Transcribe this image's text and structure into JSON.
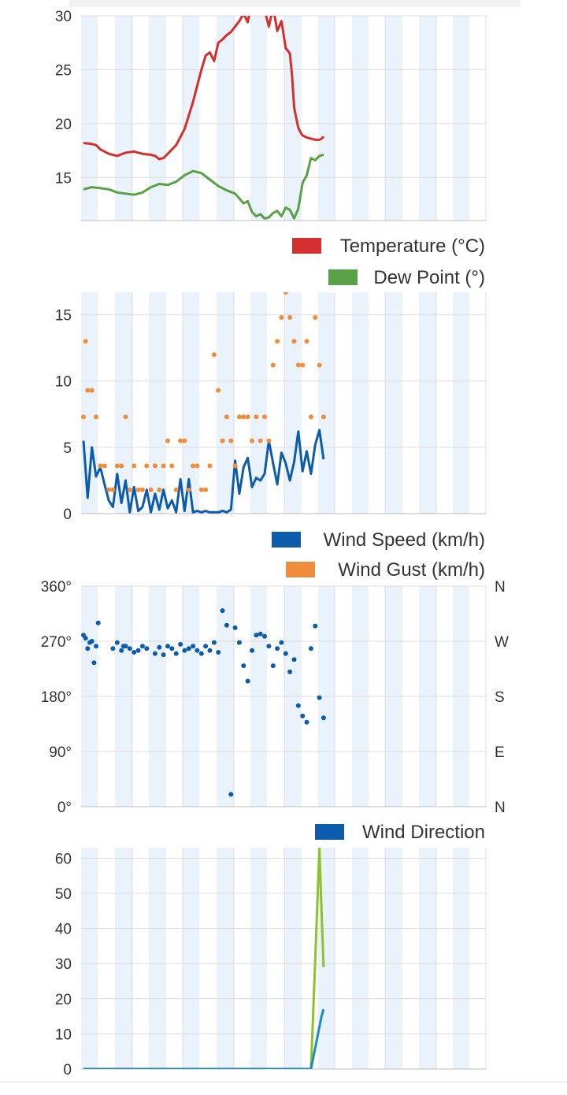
{
  "colors": {
    "temperature": "#d32f2f",
    "dew_point": "#5aa046",
    "wind_speed": "#0d5bab",
    "wind_gust": "#ef8d3c",
    "wind_direction": "#0d5bab",
    "series_blue": "#1a8cc0",
    "series_green": "#8cc22a",
    "band_shade": "#eaf2fb",
    "gridline": "#dcdcdc"
  },
  "chart_data": [
    {
      "id": "temp",
      "type": "line",
      "ylim": [
        11,
        30
      ],
      "yticks": [
        15,
        20,
        25,
        30
      ],
      "ytick_labels": [
        "15",
        "20",
        "25",
        "30"
      ],
      "grid": true,
      "legend_position": "bottom-right",
      "legend": [
        "Temperature (°C)",
        "Dew Point (°)"
      ],
      "series": [
        {
          "name": "Temperature (°C)",
          "color": "#d32f2f",
          "x": [
            0,
            2,
            3,
            4,
            6,
            8,
            10,
            12,
            14,
            16,
            17,
            18,
            19,
            20,
            22,
            24,
            26,
            27,
            28,
            29,
            30,
            31,
            32,
            33,
            34,
            35,
            36,
            37,
            38,
            39,
            40,
            41,
            42,
            44,
            45,
            46,
            47,
            48,
            49,
            49.5,
            50,
            50.5,
            51,
            51.5,
            52,
            53,
            54,
            55,
            56,
            56.5,
            57
          ],
          "y": [
            18.2,
            18.1,
            18.0,
            17.6,
            17.2,
            17.0,
            17.3,
            17.4,
            17.2,
            17.1,
            17.0,
            16.7,
            16.8,
            17.2,
            18.0,
            19.5,
            22.0,
            23.5,
            25.0,
            26.3,
            26.6,
            25.8,
            27.5,
            27.8,
            28.2,
            28.5,
            29.0,
            29.5,
            30.2,
            29.4,
            31.5,
            30.5,
            32.0,
            29.0,
            30.8,
            28.6,
            29.5,
            27.0,
            26.5,
            24.5,
            21.5,
            20.5,
            19.6,
            19.2,
            18.9,
            18.7,
            18.6,
            18.5,
            18.5,
            18.6,
            18.8
          ]
        },
        {
          "name": "Dew Point (°)",
          "color": "#5aa046",
          "x": [
            0,
            2,
            4,
            6,
            8,
            10,
            12,
            14,
            16,
            18,
            20,
            22,
            24,
            26,
            28,
            30,
            31,
            32,
            34,
            36,
            38,
            39,
            40,
            41,
            42,
            43,
            44,
            45,
            46,
            47,
            48,
            49,
            50,
            51,
            52,
            53,
            54,
            55,
            56,
            57
          ],
          "y": [
            13.9,
            14.1,
            14.0,
            13.9,
            13.6,
            13.5,
            13.4,
            13.6,
            14.1,
            14.4,
            14.3,
            14.6,
            15.2,
            15.6,
            15.4,
            14.8,
            14.5,
            14.2,
            13.8,
            13.5,
            12.6,
            12.8,
            11.8,
            11.4,
            11.6,
            11.2,
            11.3,
            11.7,
            11.9,
            11.4,
            12.2,
            12.0,
            11.2,
            12.1,
            14.5,
            15.2,
            16.8,
            16.6,
            17.0,
            17.1
          ]
        }
      ]
    },
    {
      "id": "wind",
      "type": "line",
      "ylim": [
        0,
        16.7
      ],
      "yticks": [
        0,
        5,
        10,
        15
      ],
      "ytick_labels": [
        "0",
        "5",
        "10",
        "15"
      ],
      "grid": true,
      "legend_position": "bottom-right",
      "legend": [
        "Wind Speed (km/h)",
        "Wind Gust (km/h)"
      ],
      "series": [
        {
          "name": "Wind Speed (km/h)",
          "type": "line",
          "color": "#0d5bab",
          "x": [
            0,
            1,
            2,
            3,
            4,
            5,
            6,
            7,
            8,
            9,
            10,
            11,
            12,
            13,
            14,
            15,
            16,
            17,
            18,
            19,
            20,
            21,
            22,
            23,
            24,
            25,
            26,
            27,
            28,
            29,
            30,
            31,
            32,
            33,
            34,
            35,
            36,
            37,
            38,
            39,
            40,
            41,
            42,
            43,
            44,
            45,
            46,
            47,
            48,
            49,
            50,
            51,
            52,
            53,
            54,
            55,
            56,
            57
          ],
          "y": [
            5.5,
            1.2,
            5.0,
            2.8,
            3.5,
            2.2,
            1.0,
            0.5,
            3.0,
            0.8,
            2.5,
            0.1,
            2.0,
            0.2,
            0.5,
            1.8,
            0.1,
            1.5,
            0.3,
            1.8,
            0.4,
            1.0,
            0.1,
            2.6,
            0.2,
            2.6,
            0.1,
            0.2,
            0.1,
            0.2,
            0.1,
            0.1,
            0.1,
            0.2,
            0.1,
            0.3,
            4.0,
            1.5,
            3.5,
            4.2,
            2.0,
            2.7,
            2.5,
            3.0,
            5.5,
            3.8,
            2.2,
            4.6,
            3.8,
            2.5,
            3.9,
            6.2,
            3.2,
            4.7,
            3.0,
            5.2,
            6.3,
            4.1
          ]
        },
        {
          "name": "Wind Gust (km/h)",
          "type": "scatter",
          "color": "#ef8d3c",
          "x": [
            0,
            0.5,
            1,
            2,
            3,
            4,
            5,
            6,
            7,
            8,
            9,
            10,
            11,
            12,
            13,
            14,
            15,
            16,
            17,
            18,
            19,
            20,
            21,
            22,
            23,
            24,
            25,
            26,
            27,
            28,
            29,
            30,
            31,
            32,
            33,
            34,
            35,
            36,
            37,
            38,
            39,
            40,
            41,
            42,
            43,
            44,
            45,
            46,
            47,
            48,
            49,
            50,
            51,
            52,
            53,
            54,
            55,
            56,
            57
          ],
          "y": [
            7.3,
            13.0,
            9.3,
            9.3,
            7.3,
            3.6,
            3.6,
            1.8,
            1.8,
            3.6,
            3.6,
            7.3,
            1.8,
            3.6,
            1.8,
            1.8,
            3.6,
            1.8,
            3.6,
            1.8,
            3.6,
            5.5,
            3.6,
            1.8,
            5.5,
            5.5,
            1.8,
            3.6,
            3.6,
            1.8,
            1.8,
            3.6,
            12.0,
            9.3,
            5.5,
            7.3,
            5.5,
            3.6,
            7.3,
            7.3,
            7.3,
            5.5,
            7.3,
            5.5,
            7.3,
            5.5,
            11.2,
            13.0,
            14.8,
            16.7,
            14.8,
            13.0,
            11.2,
            11.2,
            13.0,
            7.3,
            14.8,
            11.2,
            7.3
          ]
        }
      ]
    },
    {
      "id": "direction",
      "type": "scatter",
      "ylim": [
        0,
        360
      ],
      "yticks": [
        0,
        90,
        180,
        270,
        360
      ],
      "ytick_labels": [
        "0°",
        "90°",
        "180°",
        "270°",
        "360°"
      ],
      "right_tick_labels": [
        "N",
        "E",
        "S",
        "W",
        "N"
      ],
      "grid": true,
      "legend_position": "bottom-right",
      "legend": [
        "Wind Direction"
      ],
      "series": [
        {
          "name": "Wind Direction",
          "color": "#0d5bab",
          "x": [
            0,
            0.5,
            1,
            1.5,
            2,
            2.5,
            3,
            3.5,
            7,
            8,
            9,
            9.5,
            10,
            11,
            12,
            13,
            14,
            15,
            17,
            18,
            19,
            20,
            21,
            22,
            23,
            24,
            25,
            26,
            27,
            28,
            29,
            30,
            31,
            32,
            33,
            34,
            35,
            36,
            37,
            38,
            39,
            40,
            41,
            42,
            43,
            44,
            45,
            46,
            47,
            48,
            49,
            50,
            51,
            52,
            53,
            54,
            55,
            56,
            57
          ],
          "y": [
            280,
            275,
            258,
            268,
            270,
            235,
            262,
            300,
            258,
            268,
            255,
            262,
            262,
            258,
            252,
            255,
            262,
            258,
            250,
            260,
            248,
            262,
            258,
            250,
            265,
            255,
            258,
            262,
            255,
            250,
            262,
            255,
            268,
            252,
            320,
            296,
            20,
            292,
            268,
            230,
            205,
            255,
            280,
            282,
            278,
            262,
            230,
            258,
            268,
            250,
            220,
            240,
            165,
            148,
            138,
            258,
            295,
            178,
            145
          ]
        }
      ]
    },
    {
      "id": "fourth",
      "type": "line",
      "ylim": [
        0,
        63
      ],
      "yticks": [
        0,
        10,
        20,
        30,
        40,
        50,
        60
      ],
      "ytick_labels": [
        "0",
        "10",
        "20",
        "30",
        "40",
        "50",
        "60"
      ],
      "grid": true,
      "series": [
        {
          "color": "#8cc22a",
          "x": [
            0,
            5,
            10,
            15,
            20,
            25,
            30,
            35,
            40,
            45,
            50,
            54,
            55,
            56,
            56.5,
            57
          ],
          "y": [
            0,
            0,
            0,
            0,
            0,
            0,
            0,
            0,
            0,
            0,
            0,
            0,
            31,
            63,
            45,
            29
          ]
        },
        {
          "color": "#1a8cc0",
          "x": [
            0,
            5,
            10,
            15,
            20,
            25,
            30,
            35,
            40,
            45,
            50,
            54,
            55,
            56,
            56.5,
            57
          ],
          "y": [
            0,
            0,
            0,
            0,
            0,
            0,
            0,
            0,
            0,
            0,
            0,
            0,
            6,
            12,
            15,
            17
          ]
        }
      ]
    }
  ]
}
